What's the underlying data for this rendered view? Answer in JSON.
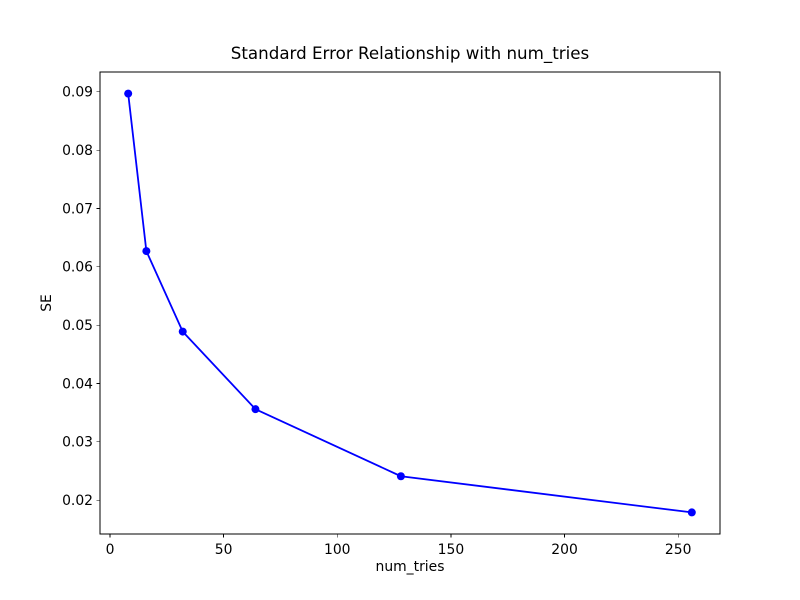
{
  "chart_data": {
    "type": "line",
    "title": "Standard Error Relationship with num_tries",
    "xlabel": "num_tries",
    "ylabel": "SE",
    "series": [
      {
        "name": "SE",
        "x": [
          8,
          16,
          32,
          64,
          128,
          256
        ],
        "y": [
          0.0897,
          0.0627,
          0.0489,
          0.0356,
          0.0241,
          0.0179
        ],
        "color": "#0000ff",
        "marker": "circle"
      }
    ],
    "xlim": [
      -4.4,
      268.4
    ],
    "ylim": [
      0.0142,
      0.0934
    ],
    "xticks": [
      0,
      50,
      100,
      150,
      200,
      250
    ],
    "yticks": [
      0.02,
      0.03,
      0.04,
      0.05,
      0.06,
      0.07,
      0.08,
      0.09
    ],
    "ytick_decimals": 2,
    "grid": false,
    "legend": false,
    "axis_color": "#000000",
    "background": "#ffffff"
  }
}
